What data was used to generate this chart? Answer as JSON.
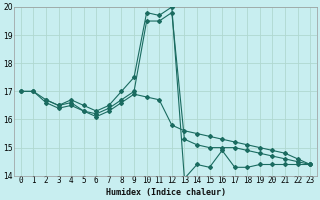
{
  "title": "",
  "xlabel": "Humidex (Indice chaleur)",
  "ylabel": "",
  "bg_color": "#c8eef0",
  "grid_color": "#b0d8d0",
  "line_color": "#1a6b60",
  "xlim": [
    -0.5,
    23.5
  ],
  "ylim": [
    14,
    20
  ],
  "line1_x": [
    0,
    1,
    2,
    3,
    4,
    5,
    6,
    7,
    8,
    9,
    10,
    11,
    12,
    13,
    14,
    15,
    16,
    17,
    18,
    19,
    20,
    21,
    22,
    23
  ],
  "line1_y": [
    17.0,
    17.0,
    16.7,
    16.5,
    16.7,
    16.5,
    16.3,
    16.5,
    17.0,
    17.5,
    19.8,
    19.7,
    20.0,
    13.9,
    14.4,
    14.3,
    14.9,
    14.3,
    14.3,
    14.4,
    14.4,
    14.4,
    14.4,
    14.4
  ],
  "line2_x": [
    2,
    3,
    4,
    5,
    6,
    7,
    8,
    9,
    10,
    11,
    12,
    13,
    14,
    15,
    16,
    17,
    18,
    19,
    20,
    21,
    22,
    23
  ],
  "line2_y": [
    16.7,
    16.5,
    16.6,
    16.3,
    16.2,
    16.4,
    16.7,
    17.0,
    19.5,
    19.5,
    19.8,
    15.3,
    15.1,
    15.0,
    15.0,
    15.0,
    14.9,
    14.8,
    14.7,
    14.6,
    14.5,
    14.4
  ],
  "line3_x": [
    0,
    1,
    2,
    3,
    4,
    5,
    6,
    7,
    8,
    9,
    10,
    11,
    12,
    13,
    14,
    15,
    16,
    17,
    18,
    19,
    20,
    21,
    22,
    23
  ],
  "line3_y": [
    17.0,
    17.0,
    16.6,
    16.4,
    16.5,
    16.3,
    16.1,
    16.3,
    16.6,
    16.9,
    16.8,
    16.7,
    15.8,
    15.6,
    15.5,
    15.4,
    15.3,
    15.2,
    15.1,
    15.0,
    14.9,
    14.8,
    14.6,
    14.4
  ],
  "yticks": [
    14,
    15,
    16,
    17,
    18,
    19,
    20
  ],
  "xticks": [
    0,
    1,
    2,
    3,
    4,
    5,
    6,
    7,
    8,
    9,
    10,
    11,
    12,
    13,
    14,
    15,
    16,
    17,
    18,
    19,
    20,
    21,
    22,
    23
  ],
  "xlabel_fontsize": 6,
  "tick_fontsize": 5.5,
  "line_width": 0.8,
  "marker_size": 2.0
}
